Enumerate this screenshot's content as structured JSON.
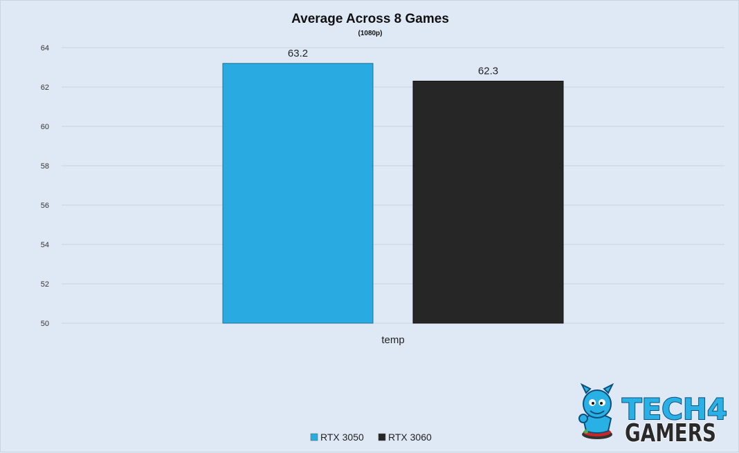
{
  "chart_data": {
    "type": "bar",
    "title": "Average Across 8 Games",
    "subtitle": "(1080p)",
    "categories": [
      "temp"
    ],
    "series": [
      {
        "name": "RTX 3050",
        "values": [
          63.2
        ],
        "color": "#29abe2"
      },
      {
        "name": "RTX 3060",
        "values": [
          62.3
        ],
        "color": "#262626"
      }
    ],
    "ylim": [
      50,
      64
    ],
    "yticks": [
      50,
      52,
      54,
      56,
      58,
      60,
      62,
      64
    ],
    "grid": true,
    "legend_position": "bottom"
  },
  "logo": {
    "line1": "TECH4",
    "line2": "GAMERS",
    "mascot_icon": "devil-mascot-icon"
  }
}
